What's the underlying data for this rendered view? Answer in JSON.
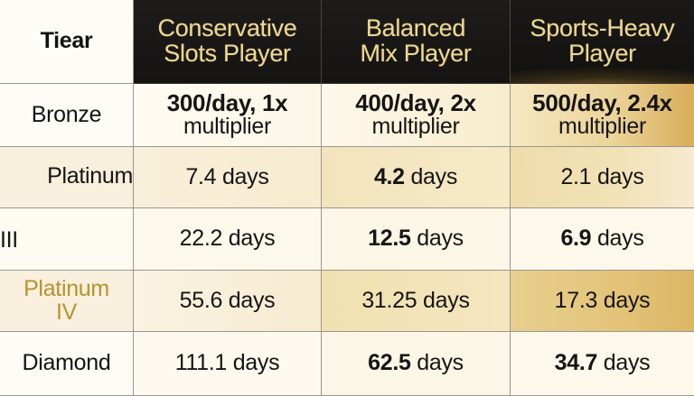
{
  "table": {
    "header": {
      "tier": "Tiear",
      "columns": [
        {
          "line1": "Conservative",
          "line2": "Slots Player"
        },
        {
          "line1": "Balanced",
          "line2": "Mix Player"
        },
        {
          "line1": "Sports-Heavy",
          "line2": "Player"
        }
      ]
    },
    "rows": [
      {
        "tier": "Bronze",
        "cells": [
          {
            "top": "300/day, 1x",
            "bottom": "multiplier"
          },
          {
            "top": "400/day, 2x",
            "bottom": "multiplier"
          },
          {
            "top": "500/day, 2.4x",
            "bottom": "multiplier"
          }
        ]
      },
      {
        "tier_line1": "Platinum",
        "tier_line2": "III",
        "cells": [
          {
            "value": "7.4",
            "unit": "days"
          },
          {
            "value": "4.2",
            "unit": "days"
          },
          {
            "value": "2.1",
            "unit": "days"
          }
        ]
      },
      {
        "cells": [
          {
            "value": "22.2",
            "unit": "days"
          },
          {
            "value": "12.5",
            "unit": "days"
          },
          {
            "value": "6.9",
            "unit": "days"
          }
        ]
      },
      {
        "tier_line1": "Platinum",
        "tier_line2": "IV",
        "cells": [
          {
            "value": "55.6",
            "unit": "days"
          },
          {
            "value": "31.25",
            "unit": "days"
          },
          {
            "value": "17.3",
            "unit": "days"
          }
        ]
      },
      {
        "tier": "Diamond",
        "cells": [
          {
            "value": "111.1",
            "unit": "days"
          },
          {
            "value": "62.5",
            "unit": "days"
          },
          {
            "value": "34.7",
            "unit": "days"
          }
        ]
      }
    ]
  },
  "colors": {
    "header_bg": "#171614",
    "header_text": "#efd893",
    "gold_accent": "#b8922e",
    "grid_line": "#9a9690"
  }
}
